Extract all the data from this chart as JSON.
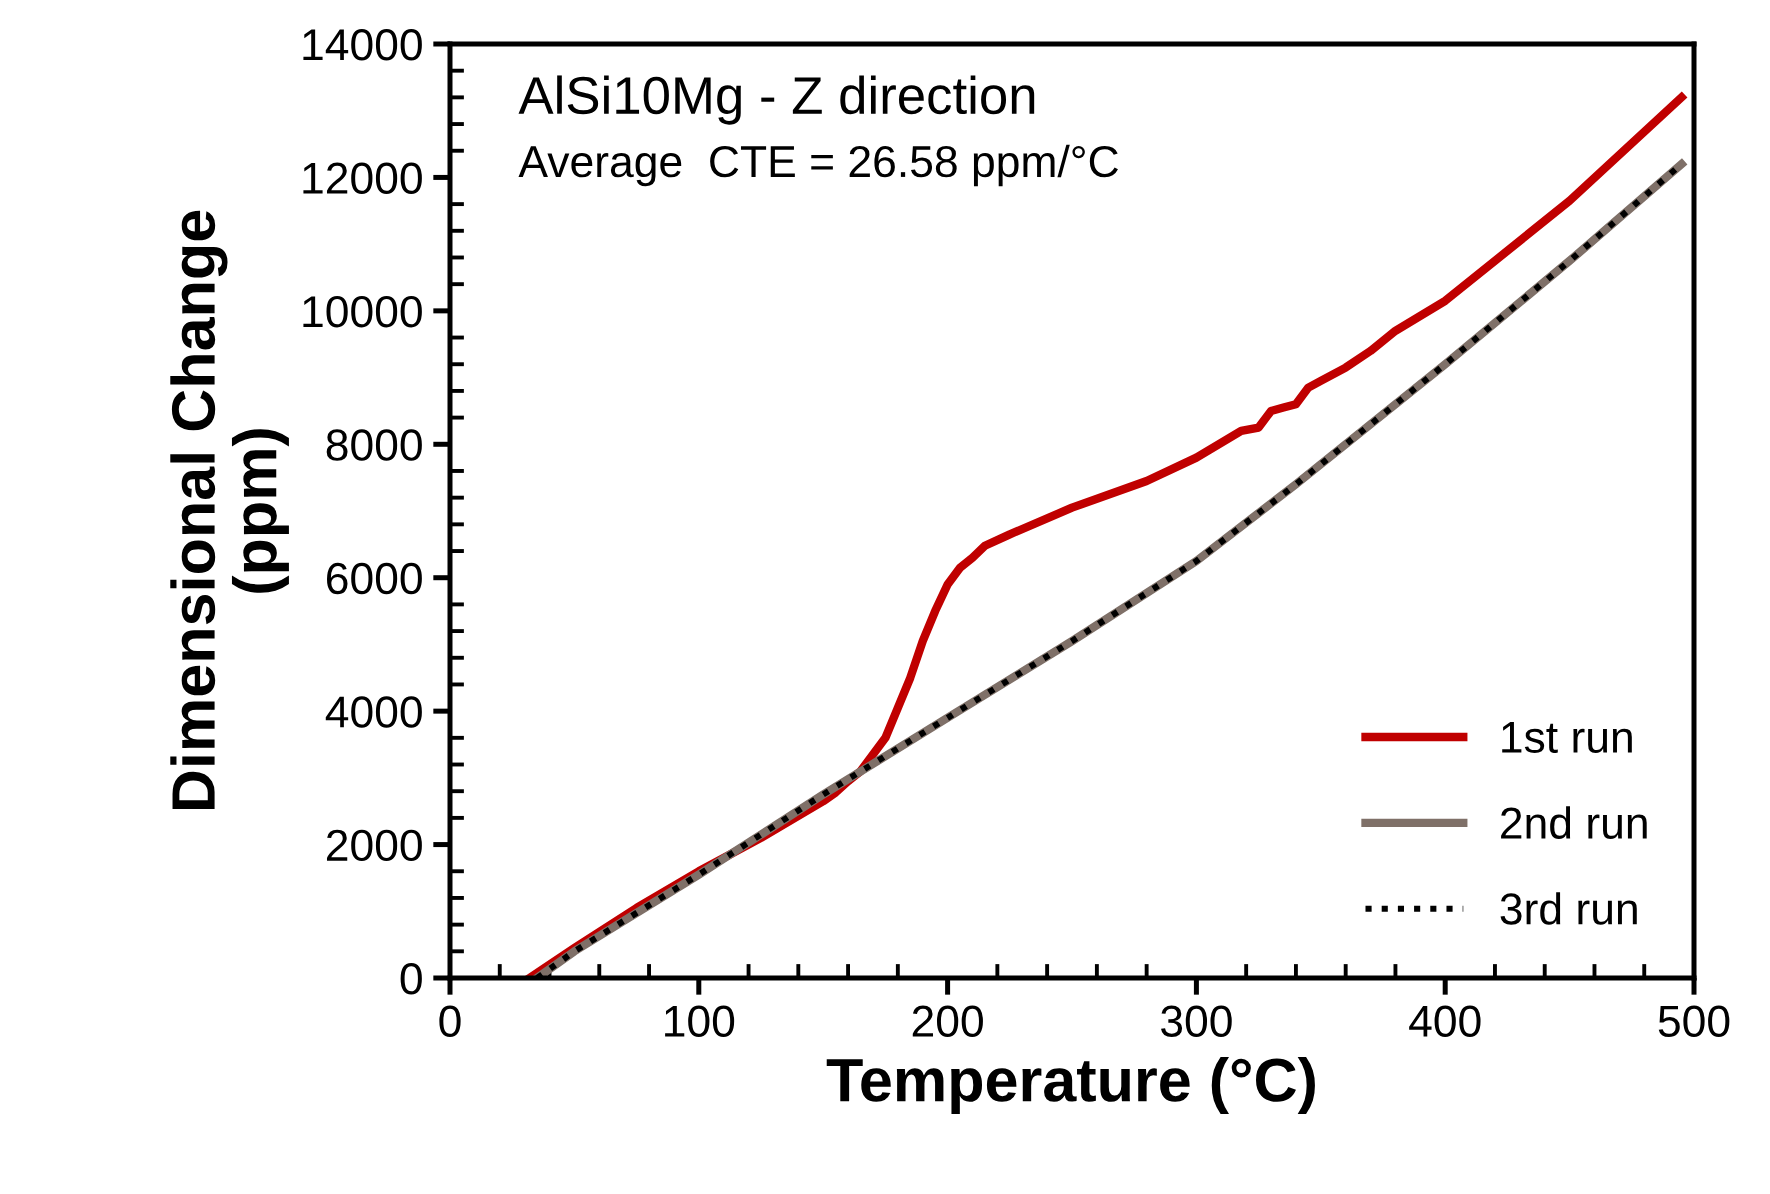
{
  "chart_data": {
    "type": "line",
    "xlabel": "Temperature (°C)",
    "ylabel": "Dimensional Change\n(ppm)",
    "annotations": [
      "AlSi10Mg - Z direction",
      "Average  CTE = 26.58 ppm/°C"
    ],
    "series": [
      {
        "name": "1st run",
        "color": "#c00000",
        "line_style": "solid",
        "x": [
          32,
          50,
          75,
          100,
          125,
          150,
          155,
          160,
          165,
          170,
          175,
          180,
          185,
          190,
          195,
          200,
          205,
          210,
          215,
          225,
          250,
          280,
          300,
          318,
          325,
          330,
          335,
          340,
          345,
          350,
          360,
          370,
          380,
          400,
          450,
          495
        ],
        "values": [
          0,
          450,
          1050,
          1600,
          2100,
          2650,
          2780,
          2950,
          3100,
          3350,
          3600,
          4050,
          4500,
          5050,
          5500,
          5900,
          6150,
          6300,
          6480,
          6650,
          7050,
          7450,
          7800,
          8200,
          8250,
          8500,
          8550,
          8600,
          8850,
          8950,
          9150,
          9400,
          9700,
          10150,
          11650,
          13200
        ]
      },
      {
        "name": "2nd run",
        "color": "#7f7068",
        "line_style": "solid",
        "x": [
          35,
          50,
          100,
          150,
          200,
          250,
          300,
          340,
          400,
          450,
          495
        ],
        "values": [
          0,
          400,
          1550,
          2750,
          3900,
          5050,
          6250,
          7400,
          9200,
          10750,
          12200
        ]
      },
      {
        "name": "3rd run",
        "color": "#000000",
        "line_style": "dotted",
        "x": [
          35,
          50,
          100,
          150,
          200,
          250,
          300,
          340,
          400,
          450,
          495
        ],
        "values": [
          0,
          400,
          1550,
          2750,
          3900,
          5050,
          6250,
          7400,
          9200,
          10750,
          12200
        ]
      }
    ],
    "xlim": [
      0,
      500
    ],
    "ylim": [
      0,
      14000
    ],
    "xticks": [
      0,
      {
        "value": 20,
        "label": null
      },
      {
        "value": 40,
        "label": null
      },
      {
        "value": 60,
        "label": null
      },
      {
        "value": 80,
        "label": null
      },
      100,
      {
        "value": 120,
        "label": null
      },
      {
        "value": 140,
        "label": null
      },
      {
        "value": 160,
        "label": null
      },
      {
        "value": 180,
        "label": null
      },
      200,
      {
        "value": 220,
        "label": null
      },
      {
        "value": 240,
        "label": null
      },
      {
        "value": 260,
        "label": null
      },
      {
        "value": 280,
        "label": null
      },
      300,
      {
        "value": 320,
        "label": null
      },
      {
        "value": 340,
        "label": null
      },
      {
        "value": 360,
        "label": null
      },
      {
        "value": 380,
        "label": null
      },
      400,
      {
        "value": 420,
        "label": null
      },
      {
        "value": 440,
        "label": null
      },
      {
        "value": 460,
        "label": null
      },
      {
        "value": 480,
        "label": null
      },
      500
    ],
    "yticks": [
      0,
      {
        "value": 400,
        "label": null
      },
      {
        "value": 800,
        "label": null
      },
      {
        "value": 1200,
        "label": null
      },
      {
        "value": 1600,
        "label": null
      },
      2000,
      {
        "value": 2400,
        "label": null
      },
      {
        "value": 2800,
        "label": null
      },
      {
        "value": 3200,
        "label": null
      },
      {
        "value": 3600,
        "label": null
      },
      4000,
      {
        "value": 4400,
        "label": null
      },
      {
        "value": 4800,
        "label": null
      },
      {
        "value": 5200,
        "label": null
      },
      {
        "value": 5600,
        "label": null
      },
      6000,
      {
        "value": 6400,
        "label": null
      },
      {
        "value": 6800,
        "label": null
      },
      {
        "value": 7200,
        "label": null
      },
      {
        "value": 7600,
        "label": null
      },
      8000,
      {
        "value": 8400,
        "label": null
      },
      {
        "value": 8800,
        "label": null
      },
      {
        "value": 9200,
        "label": null
      },
      {
        "value": 9600,
        "label": null
      },
      10000,
      {
        "value": 10400,
        "label": null
      },
      {
        "value": 10800,
        "label": null
      },
      {
        "value": 11200,
        "label": null
      },
      {
        "value": 11600,
        "label": null
      },
      12000,
      {
        "value": 12400,
        "label": null
      },
      {
        "value": 12800,
        "label": null
      },
      {
        "value": 13200,
        "label": null
      },
      {
        "value": 13600,
        "label": null
      },
      14000
    ],
    "grid": false,
    "legend": "bottom right",
    "marker": "none"
  }
}
